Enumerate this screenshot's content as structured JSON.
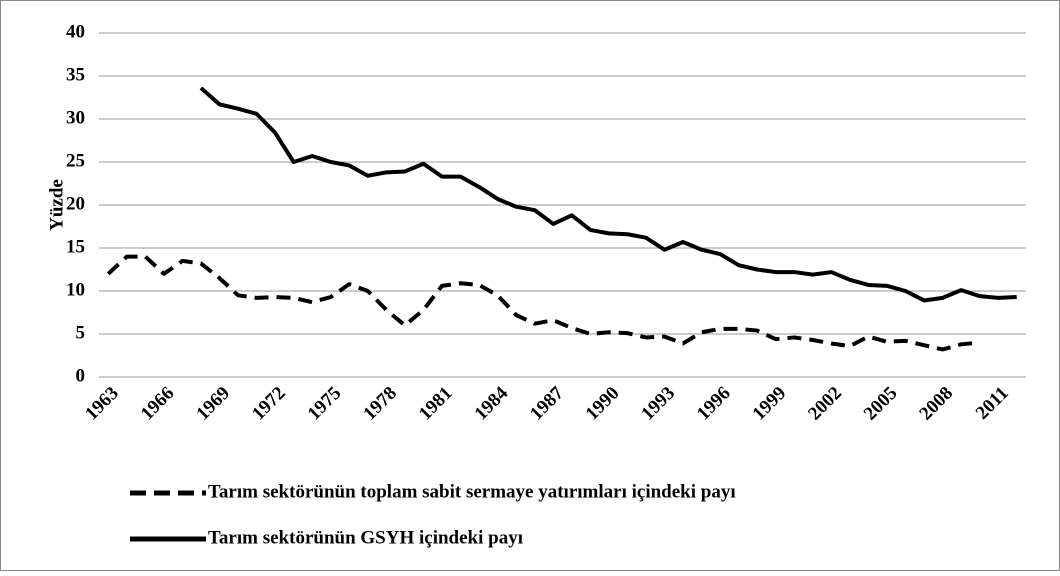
{
  "chart_data": {
    "type": "line",
    "ylabel": "Yüzde",
    "categories": [
      "1963",
      null,
      null,
      "1966",
      null,
      null,
      "1969",
      null,
      null,
      "1972",
      null,
      null,
      "1975",
      null,
      null,
      "1978",
      null,
      null,
      "1981",
      null,
      null,
      "1984",
      null,
      null,
      "1987",
      null,
      null,
      "1990",
      null,
      null,
      "1993",
      null,
      null,
      "1996",
      null,
      null,
      "1999",
      null,
      null,
      "2002",
      null,
      null,
      "2005",
      null,
      null,
      "2008",
      null,
      null,
      "2011",
      null
    ],
    "series": [
      {
        "name": "Tarım sektörünün toplam sabit sermaye yatırımları içindeki payı",
        "color": "#000000",
        "dash": true,
        "values": [
          12,
          14,
          14,
          12,
          13.5,
          13.2,
          11.5,
          9.5,
          9.2,
          9.3,
          9.2,
          8.7,
          9.3,
          10.8,
          10,
          7.8,
          6,
          7.8,
          10.6,
          10.9,
          10.7,
          9.5,
          7.2,
          6.2,
          6.6,
          5.7,
          5,
          5.2,
          5.1,
          4.6,
          4.7,
          3.9,
          5.2,
          5.6,
          5.6,
          5.4,
          4.4,
          4.6,
          4.3,
          3.9,
          3.6,
          4.7,
          4.1,
          4.2,
          3.7,
          3.2,
          3.8,
          4.0,
          null,
          null
        ]
      },
      {
        "name": "Tarım sektörünün GSYH içindeki payı",
        "color": "#000000",
        "dash": false,
        "values": [
          null,
          null,
          null,
          null,
          null,
          33.6,
          31.7,
          31.2,
          30.6,
          28.4,
          25,
          25.7,
          25,
          24.6,
          23.4,
          23.8,
          23.9,
          24.8,
          23.3,
          23.3,
          22.1,
          20.7,
          19.8,
          19.4,
          17.8,
          18.8,
          17.1,
          16.7,
          16.6,
          16.2,
          14.8,
          15.7,
          14.8,
          14.3,
          13,
          12.5,
          12.2,
          12.2,
          11.9,
          12.2,
          11.3,
          10.7,
          10.6,
          10,
          8.9,
          9.2,
          10.1,
          9.4,
          9.2,
          9.3
        ]
      }
    ],
    "ylim": [
      0,
      40
    ],
    "yticks": [
      0,
      5,
      10,
      15,
      20,
      25,
      30,
      35,
      40
    ],
    "grid": true,
    "legend": "bottom"
  }
}
